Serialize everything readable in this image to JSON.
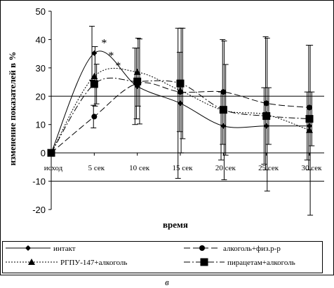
{
  "chart_data": {
    "type": "line",
    "ylabel": "изменение показателей в %",
    "xlabel": "время",
    "ylim": [
      -20,
      50
    ],
    "yticks": [
      -20,
      -10,
      0,
      10,
      20,
      30,
      40,
      50
    ],
    "gridlines_y": [
      -10,
      20
    ],
    "categories": [
      "исход",
      "5 сек",
      "10 сек",
      "15 сек",
      "20 сек",
      "25 сек",
      "30 сек"
    ],
    "series": [
      {
        "name": "интакт",
        "marker": "diamond",
        "dash": "solid",
        "values": [
          0,
          35.2,
          23.5,
          17.5,
          9.5,
          9.5,
          9.5
        ],
        "error": [
          0,
          9.5,
          13.5,
          26.5,
          12.0,
          13.5,
          12.0
        ]
      },
      {
        "name": "алкоголь+физ.р-р",
        "marker": "circle",
        "dash": "longdash",
        "values": [
          0,
          12.8,
          24.5,
          21.5,
          21.5,
          17.5,
          16.0
        ],
        "error": [
          0,
          4.0,
          12.5,
          14.0,
          18.5,
          23.5,
          22.0
        ]
      },
      {
        "name": "РГПУ-147+алкоголь",
        "marker": "triangle",
        "dash": "dotted",
        "values": [
          0,
          27.0,
          28.5,
          22.0,
          15.0,
          13.5,
          8.0
        ],
        "error": [
          0,
          10.5,
          12.0,
          22.0,
          24.5,
          27.0,
          30.0
        ]
      },
      {
        "name": "пирацетам+алкоголь",
        "marker": "square",
        "dash": "dashdot",
        "values": [
          0,
          24.3,
          25.2,
          24.5,
          15.2,
          13.0,
          12.0
        ],
        "error": [
          0,
          7.0,
          15.0,
          19.5,
          16.0,
          10.0,
          9.5
        ]
      }
    ],
    "annotations": [
      {
        "text": "*",
        "category": "5 сек",
        "y": 39.5
      },
      {
        "text": "*",
        "category": "5 сек",
        "y": 35.0
      },
      {
        "text": "*",
        "category": "5 сек",
        "y": 31.5
      }
    ],
    "legend_position": "bottom"
  },
  "caption": "в"
}
